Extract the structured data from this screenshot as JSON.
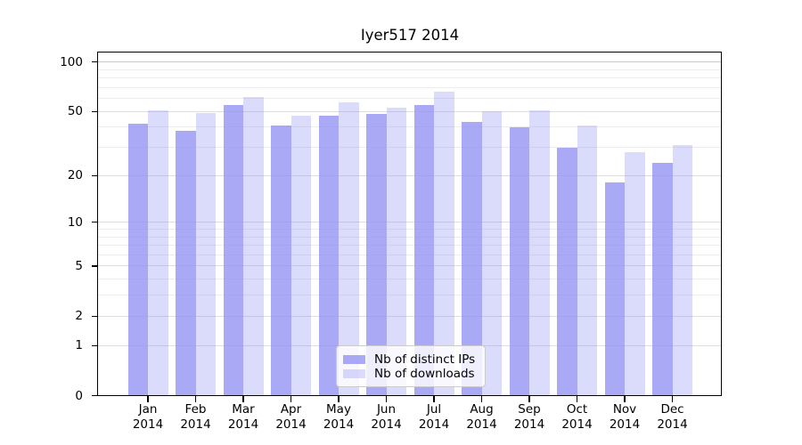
{
  "chart_data": {
    "type": "bar",
    "title": "Iyer517 2014",
    "x_categories": [
      {
        "month": "Jan",
        "year": "2014"
      },
      {
        "month": "Feb",
        "year": "2014"
      },
      {
        "month": "Mar",
        "year": "2014"
      },
      {
        "month": "Apr",
        "year": "2014"
      },
      {
        "month": "May",
        "year": "2014"
      },
      {
        "month": "Jun",
        "year": "2014"
      },
      {
        "month": "Jul",
        "year": "2014"
      },
      {
        "month": "Aug",
        "year": "2014"
      },
      {
        "month": "Sep",
        "year": "2014"
      },
      {
        "month": "Oct",
        "year": "2014"
      },
      {
        "month": "Nov",
        "year": "2014"
      },
      {
        "month": "Dec",
        "year": "2014"
      }
    ],
    "series": [
      {
        "name": "Nb of distinct IPs",
        "color": "rgba(145,145,242,0.78)",
        "values": [
          42,
          38,
          55,
          41,
          47,
          48,
          55,
          43,
          40,
          30,
          18,
          24
        ]
      },
      {
        "name": "Nb of downloads",
        "color": "rgba(145,145,242,0.33)",
        "values": [
          51,
          49,
          61,
          47,
          57,
          53,
          66,
          50,
          51,
          41,
          28,
          31
        ]
      }
    ],
    "yaxis": {
      "scale": "log10(1+x)",
      "ticks": [
        100,
        50,
        20,
        10,
        5,
        2,
        1,
        0
      ],
      "gridlines_minor": [
        3,
        4,
        6,
        7,
        8,
        9,
        30,
        40,
        60,
        70,
        80,
        90
      ],
      "gridlines_labeled": [
        1,
        2,
        5,
        10,
        20,
        50
      ],
      "gridline_top": 100,
      "ylim_top": 115
    },
    "legend": {
      "position": "lower center"
    },
    "grid": true,
    "colors": {
      "bar_distinct_ips": "rgba(145,145,242,0.78)",
      "bar_downloads": "rgba(145,145,242,0.33)",
      "grid_minor": "#ececec",
      "grid_labeled": "#dddddd",
      "grid_top": "#c8c8c8",
      "axis": "#000000",
      "background": "#ffffff"
    }
  }
}
